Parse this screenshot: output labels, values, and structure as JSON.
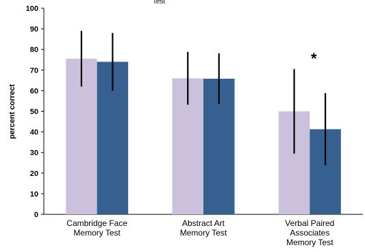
{
  "chart_data": {
    "type": "bar",
    "title": "Test",
    "ylabel": "percent correct",
    "ylim": [
      0,
      100
    ],
    "yticks": [
      0,
      10,
      20,
      30,
      40,
      50,
      60,
      70,
      80,
      90,
      100
    ],
    "categories": [
      [
        "Cambridge Face",
        "Memory Test"
      ],
      [
        "Abstract Art",
        "Memory Test"
      ],
      [
        "Verbal Paired",
        "Associates",
        "Memory Test"
      ]
    ],
    "series": [
      {
        "color": "#ccc1dd",
        "values": [
          75.5,
          66.0,
          50.0
        ],
        "error": [
          13.5,
          12.8,
          20.5
        ]
      },
      {
        "color": "#36608f",
        "values": [
          74.0,
          65.8,
          41.3
        ],
        "error": [
          14.0,
          12.3,
          17.5
        ]
      }
    ],
    "annotations": [
      {
        "category_index": 2,
        "text": "*"
      }
    ],
    "grid": false
  }
}
